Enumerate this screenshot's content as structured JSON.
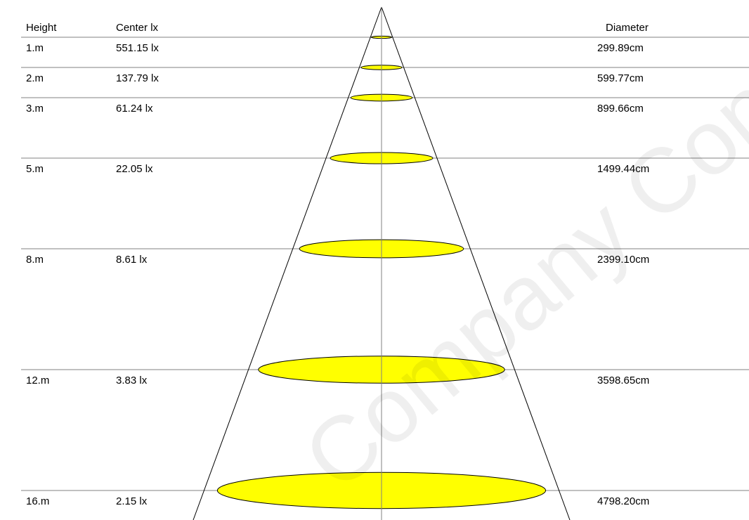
{
  "header": {
    "height": "Height",
    "center": "Center lx",
    "diameter": "Diameter"
  },
  "rows": [
    {
      "height": "1.m",
      "lux": "551.15 lx",
      "diameter": "299.89cm"
    },
    {
      "height": "2.m",
      "lux": "137.79 lx",
      "diameter": "599.77cm"
    },
    {
      "height": "3.m",
      "lux": "61.24 lx",
      "diameter": "899.66cm"
    },
    {
      "height": "5.m",
      "lux": "22.05 lx",
      "diameter": "1499.44cm"
    },
    {
      "height": "8.m",
      "lux": "8.61 lx",
      "diameter": "2399.10cm"
    },
    {
      "height": "12.m",
      "lux": "3.83 lx",
      "diameter": "3598.65cm"
    },
    {
      "height": "16.m",
      "lux": "2.15 lx",
      "diameter": "4798.20cm"
    }
  ],
  "watermark": "Company Confidential"
}
